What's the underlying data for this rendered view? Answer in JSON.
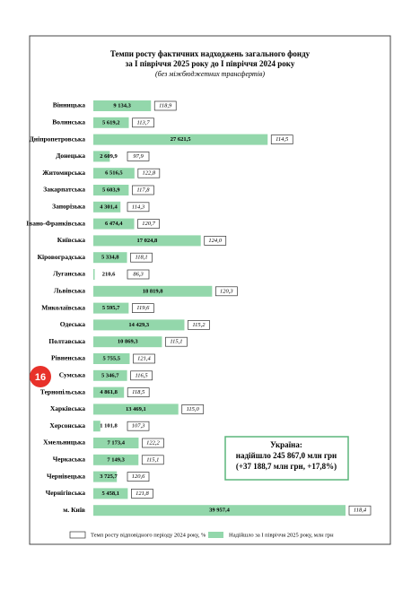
{
  "chart_data": {
    "type": "hbar",
    "title": "Темпи росту фактичних надходжень загального фонду",
    "subtitle": "за І півріччя 2025 року до І півріччя 2024 року",
    "note": "(без міжбюджетних трансфертів)",
    "categories": [
      "Вінницька",
      "Волинська",
      "Дніпропетровська",
      "Донецька",
      "Житомирська",
      "Закарпатська",
      "Запорізька",
      "Івано-Франківська",
      "Київська",
      "Кіровоградська",
      "Луганська",
      "Львівська",
      "Миколаївська",
      "Одеська",
      "Полтавська",
      "Рівненська",
      "Сумська",
      "Тернопільська",
      "Харківська",
      "Херсонська",
      "Хмельницька",
      "Черкаська",
      "Чернівецька",
      "Чернігівська",
      "м. Київ"
    ],
    "series": [
      {
        "name": "Надійшло за І півріччя 2025 року, млн грн",
        "color": "#93d7ab",
        "values": [
          9134.3,
          5619.2,
          27621.5,
          2609.9,
          6516.5,
          5603.9,
          4301.4,
          6474.4,
          17024.8,
          5334.8,
          210.6,
          18819.8,
          5595.7,
          14429.3,
          10869.3,
          5755.5,
          5346.7,
          4861.8,
          13469.1,
          1101.8,
          7173.4,
          7149.3,
          3725.7,
          5458.1,
          39957.4
        ],
        "value_labels": [
          "9 134,3",
          "5 619,2",
          "27 621,5",
          "2 609,9",
          "6 516,5",
          "5 603,9",
          "4 301,4",
          "6 474,4",
          "17 024,8",
          "5 334,8",
          "210,6",
          "18 819,8",
          "5 595,7",
          "14 429,3",
          "10 869,3",
          "5 755,5",
          "5 346,7",
          "4 861,8",
          "13 469,1",
          "1 101,8",
          "7 173,4",
          "7 149,3",
          "3 725,7",
          "5 458,1",
          "39 957,4"
        ]
      },
      {
        "name": "Темп росту відповідного періоду 2024 року, %",
        "color": "#ffffff",
        "values": [
          118.9,
          113.7,
          114.5,
          97.9,
          122.8,
          117.8,
          114.3,
          120.7,
          124.0,
          118.1,
          86.3,
          120.3,
          119.6,
          115.2,
          115.1,
          121.4,
          116.5,
          118.5,
          115.0,
          107.3,
          122.2,
          115.1,
          120.6,
          121.8,
          118.4
        ],
        "value_labels": [
          "118,9",
          "113,7",
          "114,5",
          "97,9",
          "122,8",
          "117,8",
          "114,3",
          "120,7",
          "124,0",
          "118,1",
          "86,3",
          "120,3",
          "119,6",
          "115,2",
          "115,1",
          "121,4",
          "116,5",
          "118,5",
          "115,0",
          "107,3",
          "122,2",
          "115,1",
          "120,6",
          "121,8",
          "118,4"
        ]
      }
    ],
    "summary": [
      "Україна:",
      "надійшло 245 867,0 млн грн",
      "(+37 188,7 млн грн, +17,8%)"
    ],
    "marker": "16"
  }
}
